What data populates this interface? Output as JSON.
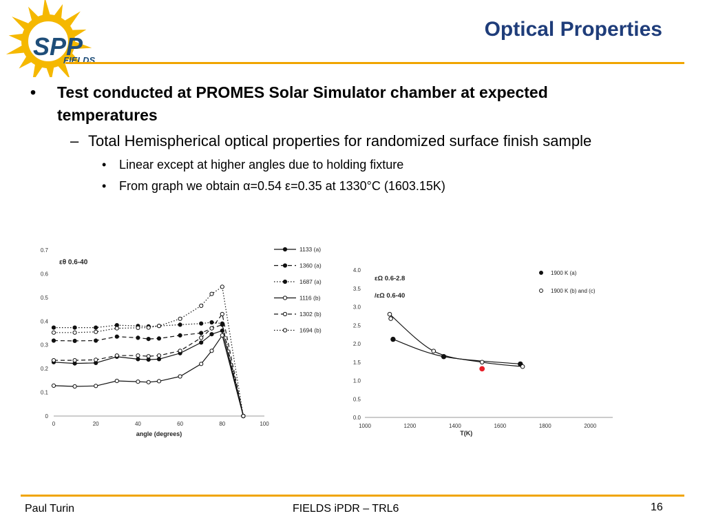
{
  "slide": {
    "title": "Optical Properties",
    "footer_left": "Paul Turin",
    "footer_center": "FIELDS iPDR – TRL6",
    "page_number": "16"
  },
  "logo": {
    "text_main": "SPP",
    "text_sub": "FIELDS",
    "colors": {
      "sun": "#f5b800",
      "text": "#1f4e79"
    }
  },
  "bullets": {
    "l1": "Test conducted at PROMES Solar Simulator chamber at expected temperatures",
    "l2": "Total Hemispherical optical properties for randomized surface finish sample",
    "l3": [
      "Linear except at higher angles due to holding fixture",
      "From graph we obtain α=0.54 ε=0.35 at 1330°C (1603.15K)"
    ]
  },
  "colors": {
    "title": "#1f3d7a",
    "rule": "#f0a500",
    "red_point": "#e8202a"
  },
  "chart_data": [
    {
      "type": "line",
      "title": "",
      "annotation": "εθ 0.6-40",
      "xlabel": "angle (degrees)",
      "ylabel": "",
      "xlim": [
        0,
        100
      ],
      "ylim": [
        0,
        0.7
      ],
      "xticks": [
        "0",
        "20",
        "40",
        "60",
        "80",
        "100"
      ],
      "yticks": [
        "0",
        "0.1",
        "0.2",
        "0.3",
        "0.4",
        "0.5",
        "0.6",
        "0.7"
      ],
      "legend_position": "right",
      "x": [
        0,
        10,
        20,
        30,
        40,
        45,
        50,
        60,
        70,
        75,
        80,
        90
      ],
      "series": [
        {
          "name": "1133 (a)",
          "style": "solid",
          "marker": "filled",
          "values": [
            0.227,
            0.222,
            0.224,
            0.25,
            0.24,
            0.238,
            0.24,
            0.265,
            0.31,
            0.345,
            0.36,
            0.0
          ]
        },
        {
          "name": "1360 (a)",
          "style": "dashed",
          "marker": "filled",
          "values": [
            0.318,
            0.317,
            0.318,
            0.335,
            0.33,
            0.325,
            0.327,
            0.34,
            0.35,
            0.37,
            0.385,
            0.0
          ]
        },
        {
          "name": "1687 (a)",
          "style": "dotted",
          "marker": "filled",
          "values": [
            0.373,
            0.373,
            0.373,
            0.383,
            0.38,
            0.378,
            0.38,
            0.385,
            0.39,
            0.395,
            0.39,
            0.0
          ]
        },
        {
          "name": "1116 (b)",
          "style": "solid",
          "marker": "open",
          "values": [
            0.128,
            0.125,
            0.127,
            0.148,
            0.145,
            0.143,
            0.147,
            0.167,
            0.22,
            0.275,
            0.34,
            0.0
          ]
        },
        {
          "name": "1302 (b)",
          "style": "dashed",
          "marker": "open",
          "values": [
            0.235,
            0.235,
            0.237,
            0.255,
            0.255,
            0.252,
            0.255,
            0.275,
            0.33,
            0.37,
            0.43,
            0.0
          ]
        },
        {
          "name": "1694 (b)",
          "style": "dotted",
          "marker": "open",
          "values": [
            0.352,
            0.352,
            0.355,
            0.37,
            0.372,
            0.373,
            0.38,
            0.41,
            0.465,
            0.515,
            0.545,
            0.0
          ]
        }
      ]
    },
    {
      "type": "scatter",
      "title": "",
      "annotation_1": "εΩ 0.6-2.8",
      "annotation_2": "/εΩ 0.6-40",
      "xlabel": "T(K)",
      "ylabel": "",
      "xlim": [
        1000,
        2100
      ],
      "ylim": [
        0,
        4.0
      ],
      "xticks": [
        "1000",
        "1200",
        "1400",
        "1600",
        "1800",
        "2000"
      ],
      "yticks": [
        "0.0",
        "0.5",
        "1.0",
        "1.5",
        "2.0",
        "2.5",
        "3.0",
        "3.5",
        "4.0"
      ],
      "legend_position": "top-right",
      "series": [
        {
          "name": "1900 K (a)",
          "marker": "filled",
          "points": [
            [
              1125,
              2.12
            ],
            [
              1350,
              1.65
            ],
            [
              1690,
              1.45
            ]
          ]
        },
        {
          "name": "1900 K (b) and (c)",
          "marker": "open",
          "points": [
            [
              1110,
              2.8
            ],
            [
              1115,
              2.68
            ],
            [
              1305,
              1.8
            ],
            [
              1520,
              1.5
            ],
            [
              1700,
              1.38
            ]
          ]
        },
        {
          "name": "",
          "marker": "red",
          "points": [
            [
              1520,
              1.32
            ]
          ]
        }
      ],
      "fit_curves": [
        {
          "marker": "filled",
          "points": [
            [
              1125,
              2.12
            ],
            [
              1350,
              1.65
            ],
            [
              1690,
              1.45
            ]
          ]
        },
        {
          "marker": "open",
          "points": [
            [
              1110,
              2.8
            ],
            [
              1305,
              1.8
            ],
            [
              1520,
              1.5
            ],
            [
              1700,
              1.38
            ]
          ]
        }
      ]
    }
  ]
}
